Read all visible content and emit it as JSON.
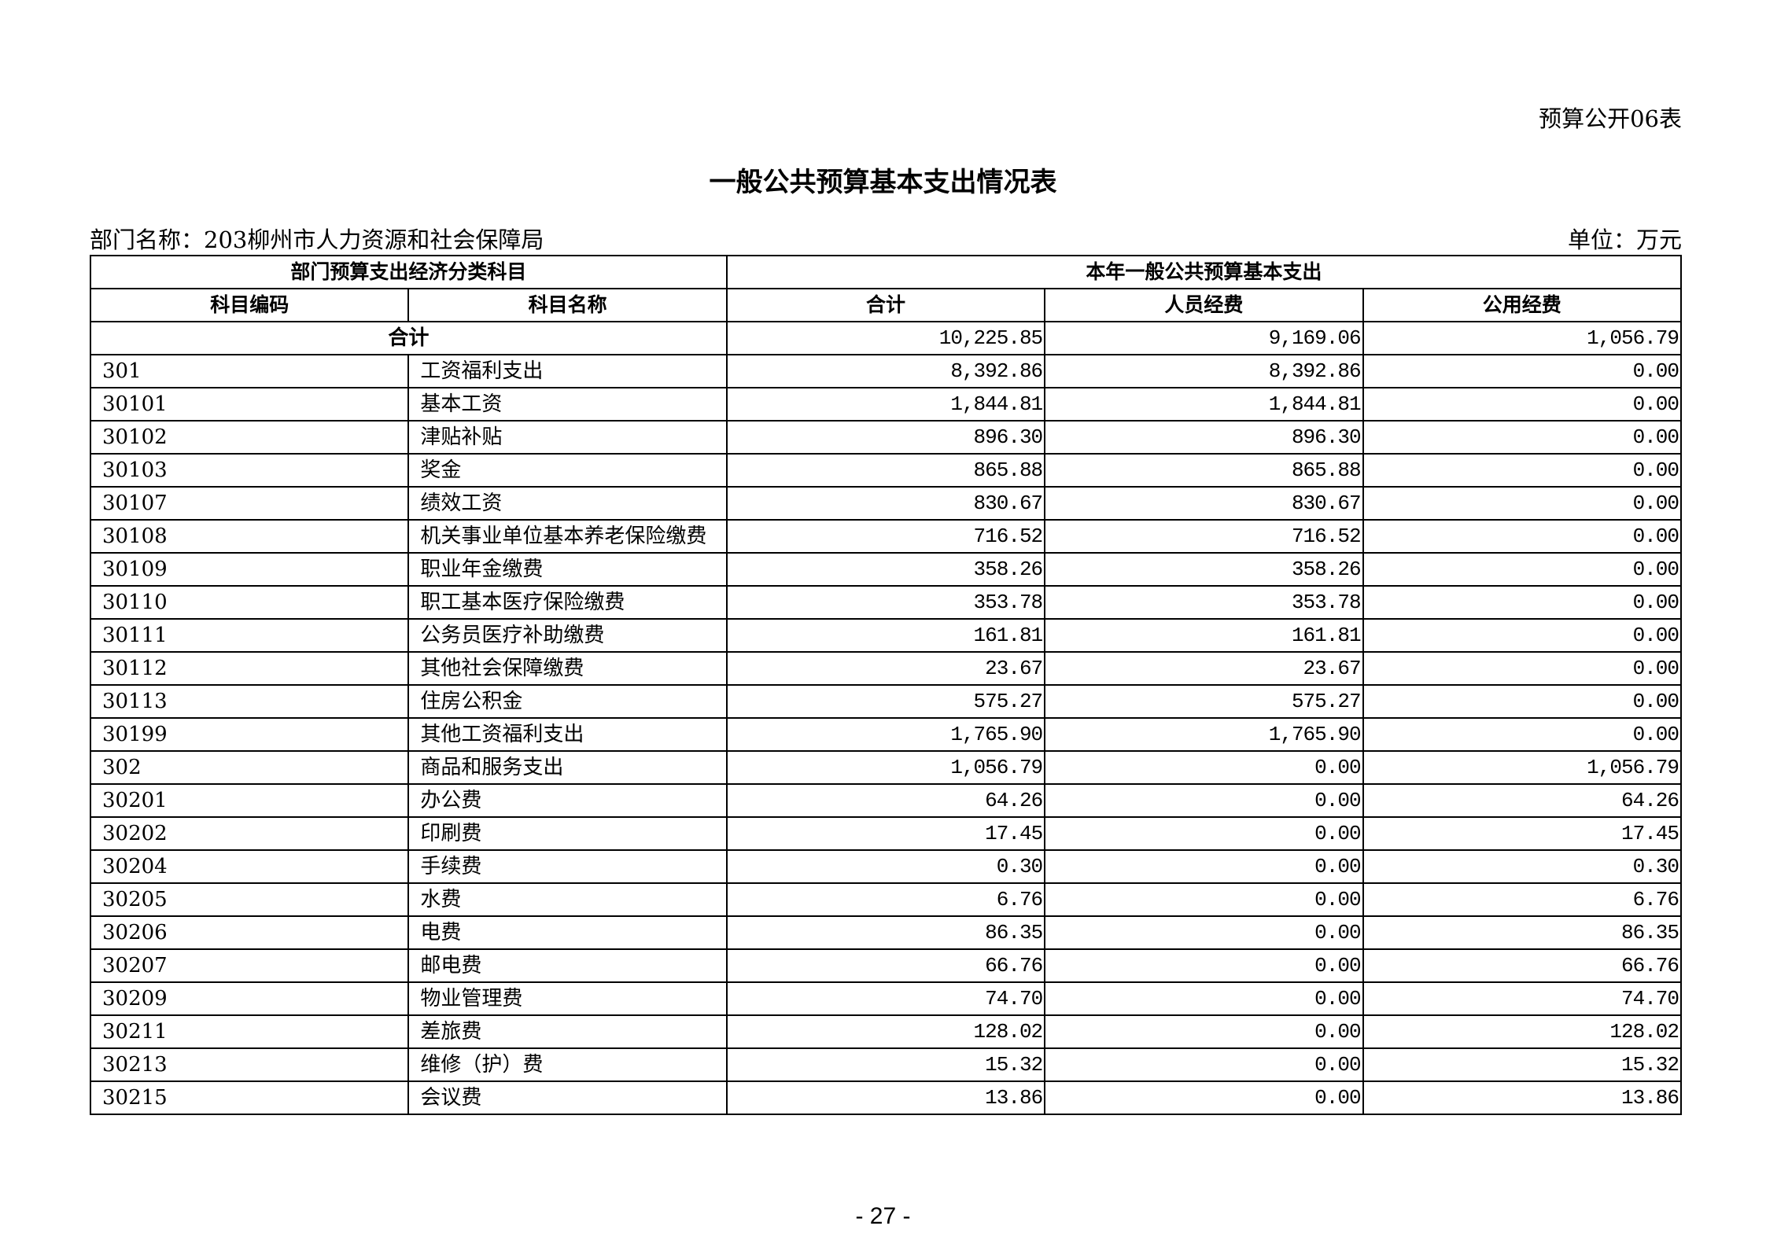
{
  "form_number": "预算公开06表",
  "title": "一般公共预算基本支出情况表",
  "department": "部门名称：203柳州市人力资源和社会保障局",
  "unit": "单位：万元",
  "table": {
    "group_headers": [
      "部门预算支出经济分类科目",
      "本年一般公共预算基本支出"
    ],
    "columns": [
      "科目编码",
      "科目名称",
      "合计",
      "人员经费",
      "公用经费"
    ],
    "total": {
      "label": "合计",
      "total": "10,225.85",
      "personnel": "9,169.06",
      "public": "1,056.79"
    },
    "rows": [
      {
        "code": "301",
        "name": "工资福利支出",
        "total": "8,392.86",
        "personnel": "8,392.86",
        "public": "0.00"
      },
      {
        "code": "30101",
        "name": "基本工资",
        "total": "1,844.81",
        "personnel": "1,844.81",
        "public": "0.00"
      },
      {
        "code": "30102",
        "name": "津贴补贴",
        "total": "896.30",
        "personnel": "896.30",
        "public": "0.00"
      },
      {
        "code": "30103",
        "name": "奖金",
        "total": "865.88",
        "personnel": "865.88",
        "public": "0.00"
      },
      {
        "code": "30107",
        "name": "绩效工资",
        "total": "830.67",
        "personnel": "830.67",
        "public": "0.00"
      },
      {
        "code": "30108",
        "name": "机关事业单位基本养老保险缴费",
        "total": "716.52",
        "personnel": "716.52",
        "public": "0.00"
      },
      {
        "code": "30109",
        "name": "职业年金缴费",
        "total": "358.26",
        "personnel": "358.26",
        "public": "0.00"
      },
      {
        "code": "30110",
        "name": "职工基本医疗保险缴费",
        "total": "353.78",
        "personnel": "353.78",
        "public": "0.00"
      },
      {
        "code": "30111",
        "name": "公务员医疗补助缴费",
        "total": "161.81",
        "personnel": "161.81",
        "public": "0.00"
      },
      {
        "code": "30112",
        "name": "其他社会保障缴费",
        "total": "23.67",
        "personnel": "23.67",
        "public": "0.00"
      },
      {
        "code": "30113",
        "name": "住房公积金",
        "total": "575.27",
        "personnel": "575.27",
        "public": "0.00"
      },
      {
        "code": "30199",
        "name": "其他工资福利支出",
        "total": "1,765.90",
        "personnel": "1,765.90",
        "public": "0.00"
      },
      {
        "code": "302",
        "name": "商品和服务支出",
        "total": "1,056.79",
        "personnel": "0.00",
        "public": "1,056.79"
      },
      {
        "code": "30201",
        "name": "办公费",
        "total": "64.26",
        "personnel": "0.00",
        "public": "64.26"
      },
      {
        "code": "30202",
        "name": "印刷费",
        "total": "17.45",
        "personnel": "0.00",
        "public": "17.45"
      },
      {
        "code": "30204",
        "name": "手续费",
        "total": "0.30",
        "personnel": "0.00",
        "public": "0.30"
      },
      {
        "code": "30205",
        "name": "水费",
        "total": "6.76",
        "personnel": "0.00",
        "public": "6.76"
      },
      {
        "code": "30206",
        "name": "电费",
        "total": "86.35",
        "personnel": "0.00",
        "public": "86.35"
      },
      {
        "code": "30207",
        "name": "邮电费",
        "total": "66.76",
        "personnel": "0.00",
        "public": "66.76"
      },
      {
        "code": "30209",
        "name": "物业管理费",
        "total": "74.70",
        "personnel": "0.00",
        "public": "74.70"
      },
      {
        "code": "30211",
        "name": "差旅费",
        "total": "128.02",
        "personnel": "0.00",
        "public": "128.02"
      },
      {
        "code": "30213",
        "name": "维修（护）费",
        "total": "15.32",
        "personnel": "0.00",
        "public": "15.32"
      },
      {
        "code": "30215",
        "name": "会议费",
        "total": "13.86",
        "personnel": "0.00",
        "public": "13.86"
      }
    ]
  },
  "page_number": "- 27 -"
}
